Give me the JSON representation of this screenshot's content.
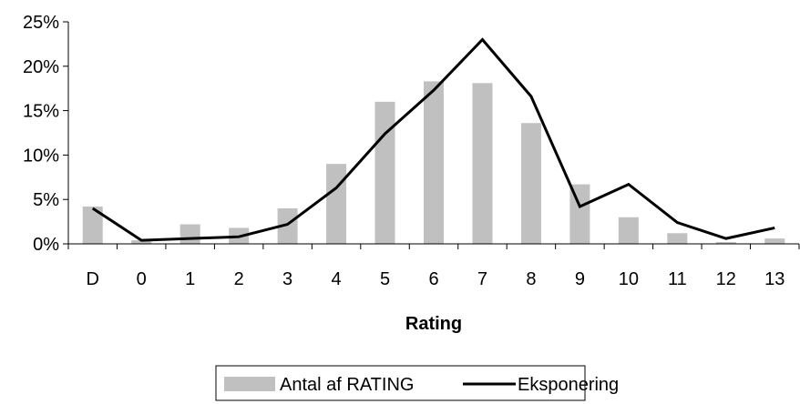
{
  "chart_data": {
    "type": "bar",
    "categories": [
      "D",
      "0",
      "1",
      "2",
      "3",
      "4",
      "5",
      "6",
      "7",
      "8",
      "9",
      "10",
      "11",
      "12",
      "13"
    ],
    "series": [
      {
        "name": "Antal af RATING",
        "type": "bar",
        "color": "#c0c0c0",
        "values": [
          4.2,
          0.4,
          2.2,
          1.8,
          4.0,
          9.0,
          16.0,
          18.3,
          18.1,
          13.6,
          6.7,
          3.0,
          1.2,
          0.2,
          0.6
        ]
      },
      {
        "name": "Eksponering",
        "type": "line",
        "color": "#000000",
        "values": [
          4.0,
          0.4,
          0.6,
          0.8,
          2.2,
          6.3,
          12.4,
          17.3,
          23.0,
          16.6,
          4.2,
          6.7,
          2.4,
          0.6,
          1.8
        ]
      }
    ],
    "xlabel": "Rating",
    "ylabel": "",
    "ylim": [
      0,
      25
    ],
    "yticks": [
      0,
      5,
      10,
      15,
      20,
      25
    ],
    "ytick_format": "%",
    "grid": false,
    "legend_position": "bottom"
  }
}
